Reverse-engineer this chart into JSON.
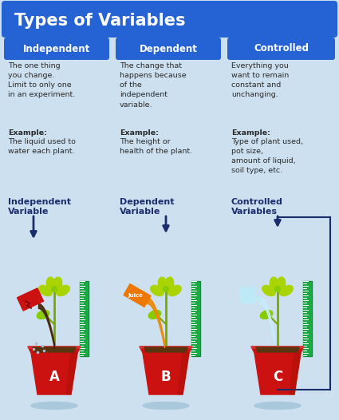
{
  "title": "Types of Variables",
  "title_bg_color": "#2563d4",
  "title_text_color": "#ffffff",
  "bg_color": "#cde0f0",
  "header_bg_color": "#2563d4",
  "header_text_color": "#ffffff",
  "headers": [
    "Independent",
    "Dependent",
    "Controlled"
  ],
  "descriptions": [
    "The one thing\nyou change.\nLimit to only one\nin an experiment.",
    "The change that\nhappens because\nof the\nindependent\nvariable.",
    "Everything you\nwant to remain\nconstant and\nunchanging."
  ],
  "example_labels": [
    "Example:",
    "Example:",
    "Example:"
  ],
  "examples": [
    "The liquid used to\nwater each plant.",
    "The height or\nhealth of the plant.",
    "Type of plant used,\npot size,\namount of liquid,\nsoil type, etc."
  ],
  "bottom_labels": [
    "Independent\nVariable",
    "Dependent\nVariable",
    "Controlled\nVariables"
  ],
  "pot_labels": [
    "A",
    "B",
    "C"
  ],
  "arrow_color": "#1a2e6e",
  "label_color": "#1a2e6e",
  "body_text_color": "#2a2a2a",
  "pot_color": "#cc1111",
  "pot_dark": "#991100",
  "ruler_color": "#1aaa44",
  "ruler_dark": "#0d7a2e",
  "plant_stem": "#77aa00",
  "plant_leaf": "#88cc00",
  "plant_leaf2": "#aad400",
  "soil_color": "#5a3310",
  "shadow_color": "#aac8dc",
  "can_A_color": "#cc1111",
  "can_B_color": "#ee7700",
  "can_C_color": "#bde8f5",
  "liquid_A_color": "#442200",
  "liquid_B_color": "#ee8800",
  "liquid_C_color": "#c8eeff"
}
